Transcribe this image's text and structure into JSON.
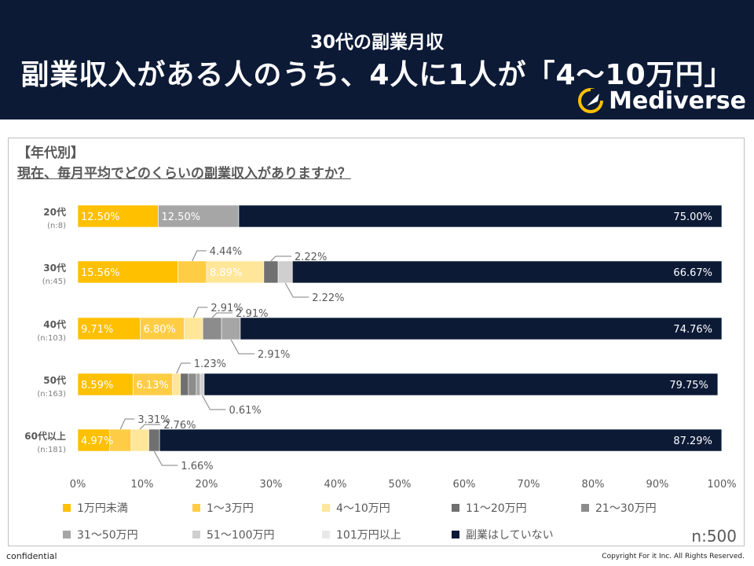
{
  "header": {
    "subtitle": "30代の副業月収",
    "headline": "副業収入がある人のうち、4人に1人が「4〜10万円」",
    "logo_text": "Mediverse"
  },
  "survey": {
    "tag": "【年代別】",
    "question": "現在、毎月平均でどのくらいの副業収入がありますか？",
    "sample_total": "n:500"
  },
  "footer": {
    "left": "confidential",
    "right": "Copyright For it Inc. All Rights Reserved."
  },
  "chart_data": {
    "type": "bar",
    "orientation": "horizontal-stacked-100",
    "xlim": [
      0,
      100
    ],
    "xticks": [
      "0%",
      "10%",
      "20%",
      "30%",
      "40%",
      "50%",
      "60%",
      "70%",
      "80%",
      "90%",
      "100%"
    ],
    "categories": [
      {
        "label": "20代",
        "n": "(n:8)"
      },
      {
        "label": "30代",
        "n": "(n:45)"
      },
      {
        "label": "40代",
        "n": "(n:103)"
      },
      {
        "label": "50代",
        "n": "(n:163)"
      },
      {
        "label": "60代以上",
        "n": "(n:181)"
      }
    ],
    "series": [
      {
        "name": "1万円未満",
        "color": "#ffc000",
        "values": [
          12.5,
          15.56,
          9.71,
          8.59,
          4.97
        ]
      },
      {
        "name": "1〜3万円",
        "color": "#ffcd45",
        "values": [
          0,
          4.44,
          6.8,
          6.13,
          3.31
        ]
      },
      {
        "name": "4〜10万円",
        "color": "#ffe699",
        "values": [
          0,
          8.89,
          2.91,
          1.23,
          2.76
        ]
      },
      {
        "name": "11〜20万円",
        "color": "#707070",
        "values": [
          0,
          2.22,
          0,
          1.23,
          1.66
        ]
      },
      {
        "name": "21〜30万円",
        "color": "#8c8c8c",
        "values": [
          0,
          0,
          2.91,
          1.23,
          0
        ]
      },
      {
        "name": "31〜50万円",
        "color": "#a6a6a6",
        "values": [
          12.5,
          0,
          2.91,
          0.61,
          0
        ]
      },
      {
        "name": "51〜100万円",
        "color": "#cfcfcf",
        "values": [
          0,
          2.22,
          0,
          0.61,
          0
        ]
      },
      {
        "name": "101万円以上",
        "color": "#e8e8e8",
        "values": [
          0,
          0,
          0,
          0,
          0
        ]
      },
      {
        "name": "副業はしていない",
        "color": "#0c1a36",
        "values": [
          75.0,
          66.67,
          74.76,
          79.75,
          87.29
        ]
      }
    ],
    "inside_labels": [
      [
        {
          "series": 0,
          "text": "12.50%"
        },
        {
          "series": 5,
          "text": "12.50%"
        },
        {
          "series": 8,
          "text": "75.00%"
        }
      ],
      [
        {
          "series": 0,
          "text": "15.56%"
        },
        {
          "series": 2,
          "text": "8.89%"
        },
        {
          "series": 8,
          "text": "66.67%"
        }
      ],
      [
        {
          "series": 0,
          "text": "9.71%"
        },
        {
          "series": 1,
          "text": "6.80%"
        },
        {
          "series": 8,
          "text": "74.76%"
        }
      ],
      [
        {
          "series": 0,
          "text": "8.59%"
        },
        {
          "series": 1,
          "text": "6.13%"
        },
        {
          "series": 8,
          "text": "79.75%"
        }
      ],
      [
        {
          "series": 0,
          "text": "4.97%"
        },
        {
          "series": 8,
          "text": "87.29%"
        }
      ]
    ],
    "callouts": [
      [],
      [
        {
          "series": 1,
          "text": "4.44%",
          "pos": "above"
        },
        {
          "series": 3,
          "text": "2.22%",
          "pos": "above"
        },
        {
          "series": 6,
          "text": "2.22%",
          "pos": "below"
        }
      ],
      [
        {
          "series": 2,
          "text": "2.91%",
          "pos": "above"
        },
        {
          "series": 4,
          "text": "2.91%",
          "pos": "above"
        },
        {
          "series": 5,
          "text": "2.91%",
          "pos": "below"
        }
      ],
      [
        {
          "series": 2,
          "text": "1.23%",
          "pos": "above"
        },
        {
          "series": 6,
          "text": "0.61%",
          "pos": "below"
        }
      ],
      [
        {
          "series": 1,
          "text": "3.31%",
          "pos": "above"
        },
        {
          "series": 2,
          "text": "2.76%",
          "pos": "above"
        },
        {
          "series": 3,
          "text": "1.66%",
          "pos": "below"
        }
      ]
    ]
  }
}
